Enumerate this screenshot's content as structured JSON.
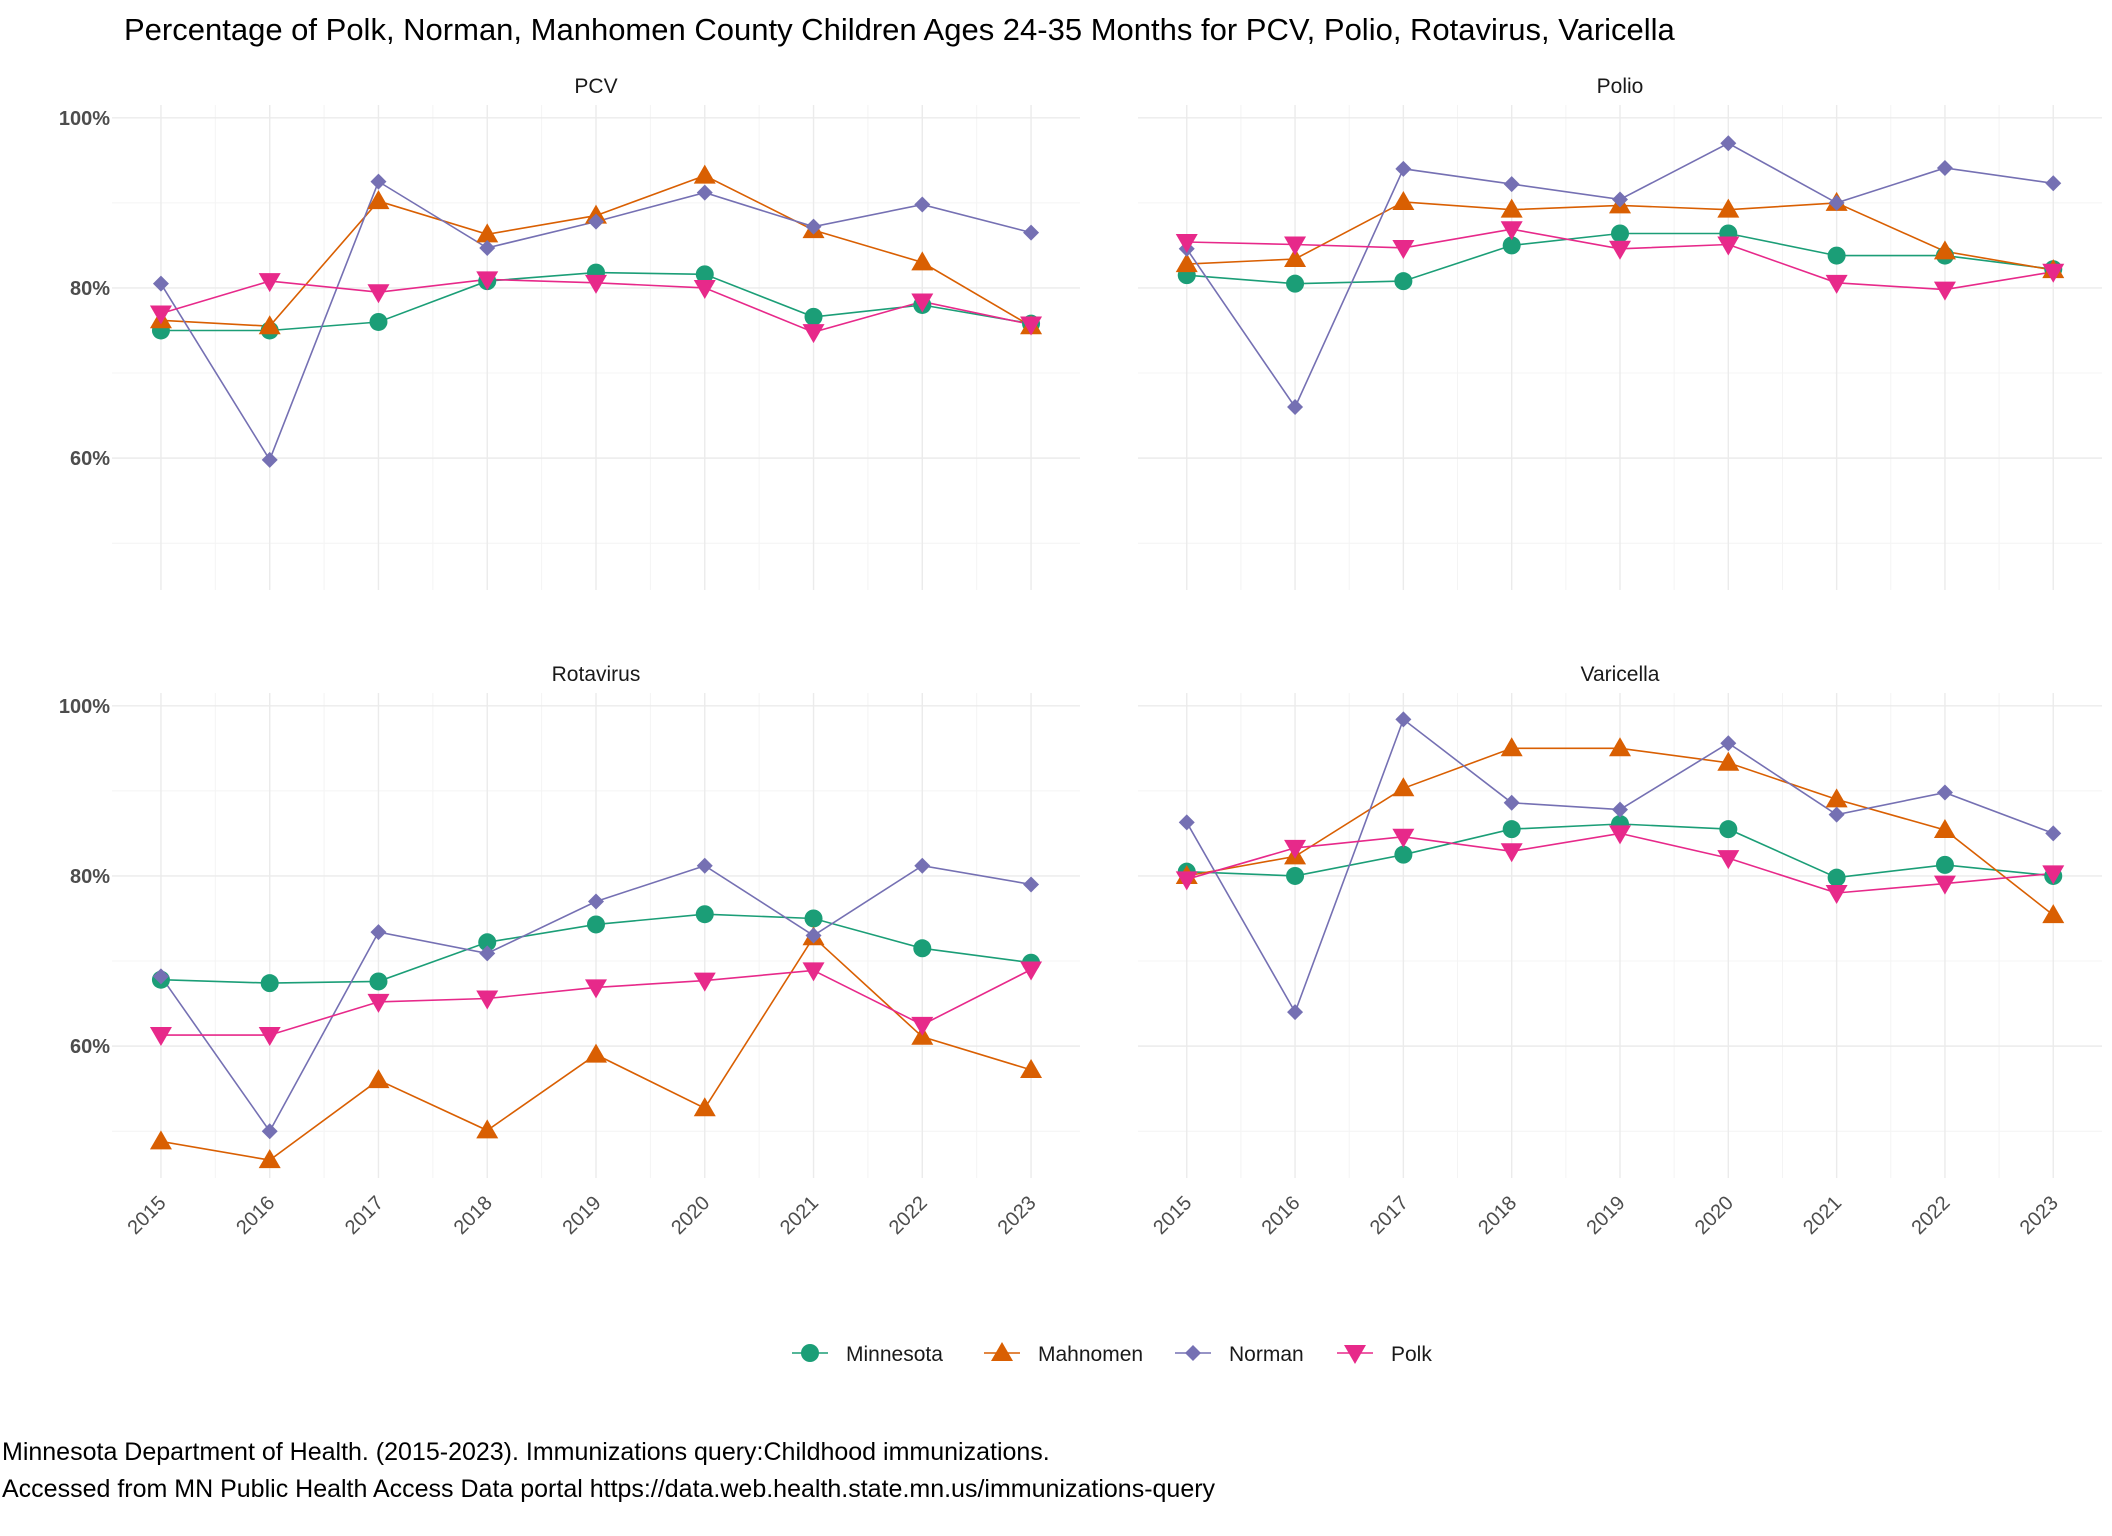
{
  "chart_data": {
    "type": "line",
    "title": "Percentage of Polk, Norman, Manhomen County Children Ages 24-35 Months for PCV, Polio, Rotavirus, Varicella",
    "x": [
      "2015",
      "2016",
      "2017",
      "2018",
      "2019",
      "2020",
      "2021",
      "2022",
      "2023"
    ],
    "y_ticks": [
      "60%",
      "80%",
      "100%"
    ],
    "legend_position": "bottom",
    "grid": true,
    "legend": [
      {
        "name": "Minnesota",
        "color": "#1b9e77",
        "shape": "circle"
      },
      {
        "name": "Mahnomen",
        "color": "#d95f02",
        "shape": "triangle-up"
      },
      {
        "name": "Norman",
        "color": "#7570b3",
        "shape": "diamond"
      },
      {
        "name": "Polk",
        "color": "#e7298a",
        "shape": "triangle-down"
      }
    ],
    "panels": [
      {
        "title": "PCV",
        "series": [
          {
            "name": "Minnesota",
            "values": [
              75.0,
              75.0,
              76.0,
              80.8,
              81.8,
              81.6,
              76.6,
              78.0,
              75.8
            ]
          },
          {
            "name": "Mahnomen",
            "values": [
              76.2,
              75.5,
              90.2,
              86.3,
              88.5,
              93.2,
              86.8,
              83.0,
              75.5
            ]
          },
          {
            "name": "Norman",
            "values": [
              80.5,
              59.8,
              92.5,
              84.7,
              87.8,
              91.2,
              87.2,
              89.8,
              86.5
            ]
          },
          {
            "name": "Polk",
            "values": [
              77.0,
              80.8,
              79.5,
              81.0,
              80.6,
              80.0,
              74.8,
              78.4,
              75.7
            ]
          }
        ]
      },
      {
        "title": "Polio",
        "series": [
          {
            "name": "Minnesota",
            "values": [
              81.5,
              80.5,
              80.8,
              85.0,
              86.4,
              86.4,
              83.8,
              83.8,
              82.2
            ]
          },
          {
            "name": "Mahnomen",
            "values": [
              82.8,
              83.4,
              90.1,
              89.2,
              89.7,
              89.2,
              90.0,
              84.3,
              82.1
            ]
          },
          {
            "name": "Norman",
            "values": [
              84.6,
              66.0,
              94.0,
              92.2,
              90.4,
              97.0,
              90.0,
              94.1,
              92.3
            ]
          },
          {
            "name": "Polk",
            "values": [
              85.4,
              85.1,
              84.7,
              86.9,
              84.6,
              85.1,
              80.6,
              79.8,
              81.9
            ]
          }
        ]
      },
      {
        "title": "Rotavirus",
        "series": [
          {
            "name": "Minnesota",
            "values": [
              67.8,
              67.4,
              67.6,
              72.2,
              74.3,
              75.5,
              75.0,
              71.5,
              69.8
            ]
          },
          {
            "name": "Mahnomen",
            "values": [
              48.8,
              46.6,
              56.0,
              50.1,
              59.0,
              52.7,
              72.8,
              61.1,
              57.2
            ]
          },
          {
            "name": "Norman",
            "values": [
              68.2,
              50.0,
              73.4,
              70.9,
              77.0,
              81.2,
              73.0,
              81.2,
              79.0
            ]
          },
          {
            "name": "Polk",
            "values": [
              61.3,
              61.3,
              65.2,
              65.6,
              66.9,
              67.7,
              68.9,
              62.5,
              69.0
            ]
          }
        ]
      },
      {
        "title": "Varicella",
        "series": [
          {
            "name": "Minnesota",
            "values": [
              80.5,
              80.0,
              82.5,
              85.5,
              86.1,
              85.5,
              79.8,
              81.3,
              80.0
            ]
          },
          {
            "name": "Mahnomen",
            "values": [
              80.0,
              82.3,
              90.3,
              95.0,
              95.0,
              93.3,
              89.0,
              85.4,
              75.4
            ]
          },
          {
            "name": "Norman",
            "values": [
              86.3,
              64.0,
              98.4,
              88.6,
              87.8,
              95.6,
              87.2,
              89.8,
              85.0
            ]
          },
          {
            "name": "Polk",
            "values": [
              79.6,
              83.3,
              84.6,
              82.9,
              85.0,
              82.1,
              78.0,
              79.1,
              80.3
            ]
          }
        ]
      }
    ],
    "caption": [
      "Minnesota Department of Health. (2015-2023). Immunizations query:Childhood immunizations.",
      "Accessed from MN Public Health Access Data portal https://data.web.health.state.mn.us/immunizations-query"
    ]
  }
}
